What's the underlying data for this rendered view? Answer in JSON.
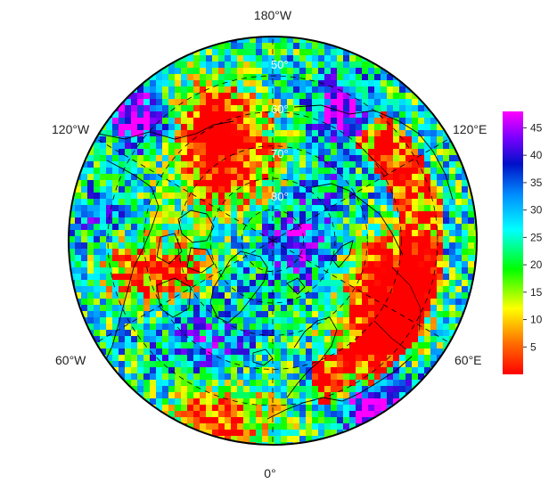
{
  "map": {
    "projection": "north-polar-stereographic",
    "center": "North Pole",
    "min_latitude": 30,
    "field_pattern": "random-noise-like gridded field with strong red band over Siberia/Eurasia, blue/purple over Arctic Ocean, magenta patches near top-left and right",
    "longitude_labels": [
      {
        "key": "top",
        "text": "180°W"
      },
      {
        "key": "upper_left",
        "text": "120°W"
      },
      {
        "key": "upper_right",
        "text": "120°E"
      },
      {
        "key": "lower_left",
        "text": "60°W"
      },
      {
        "key": "lower_right",
        "text": "60°E"
      },
      {
        "key": "bottom",
        "text": "0°"
      }
    ],
    "latitude_labels": [
      {
        "key": "lat50",
        "text": "50°"
      },
      {
        "key": "lat60",
        "text": "60°"
      },
      {
        "key": "lat70",
        "text": "70°"
      },
      {
        "key": "lat80",
        "text": "80°"
      }
    ],
    "graticule_color": "#000000",
    "coastline_color": "#000000"
  },
  "colorbar": {
    "min": 0,
    "max": 48,
    "ticks": [
      "5",
      "10",
      "15",
      "20",
      "25",
      "30",
      "35",
      "40",
      "45"
    ],
    "tick_values": [
      5,
      10,
      15,
      20,
      25,
      30,
      35,
      40,
      45
    ],
    "colors": [
      "#ff0000",
      "#ff8000",
      "#ffff00",
      "#00ff00",
      "#00ffff",
      "#0080ff",
      "#0000c0",
      "#8000ff",
      "#ff00ff"
    ]
  }
}
